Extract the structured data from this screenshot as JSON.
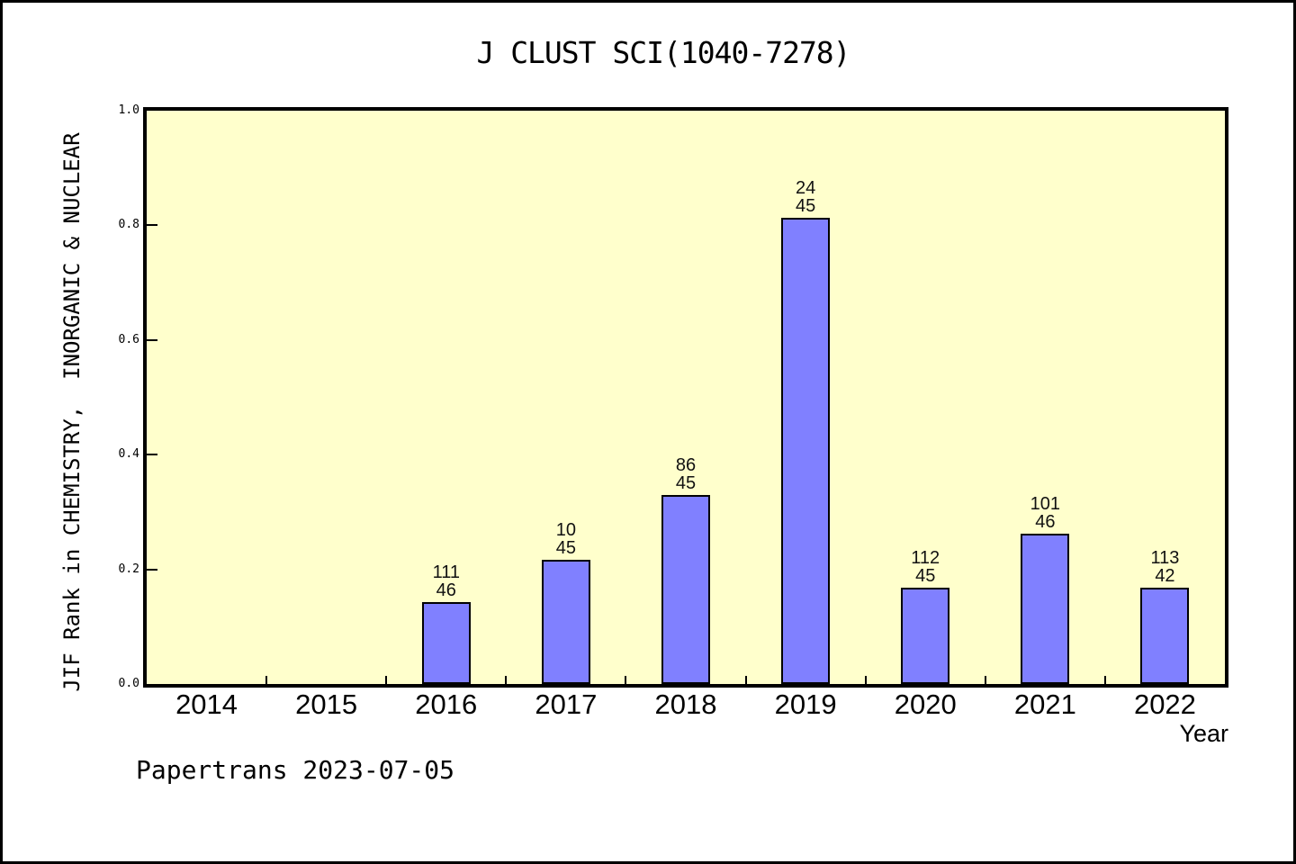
{
  "page": {
    "footer": "Papertrans 2023-07-05",
    "background": "#FFFFFF",
    "frame_color": "#000000"
  },
  "chart_data": {
    "type": "bar",
    "title": "J CLUST SCI(1040-7278)",
    "xlabel": "Year",
    "ylabel": "JIF Rank in CHEMISTRY,  INORGANIC & NUCLEAR",
    "ylim": [
      0.0,
      1.0
    ],
    "yticks": [
      0.0,
      0.2,
      0.4,
      0.6,
      0.8,
      1.0
    ],
    "grid": false,
    "legend": false,
    "colors": {
      "plot_bg": "#FFFFCC",
      "bar_fill": "#8080FF",
      "bar_border": "#000000",
      "axis": "#000000"
    },
    "categories": [
      "2014",
      "2015",
      "2016",
      "2017",
      "2018",
      "2019",
      "2020",
      "2021",
      "2022"
    ],
    "bars": [
      {
        "year": "2016",
        "value": 0.143,
        "label_lines": [
          "111",
          "46"
        ]
      },
      {
        "year": "2017",
        "value": 0.217,
        "label_lines": [
          "10",
          "45"
        ]
      },
      {
        "year": "2018",
        "value": 0.33,
        "label_lines": [
          "86",
          "45"
        ]
      },
      {
        "year": "2019",
        "value": 0.813,
        "label_lines": [
          "24",
          "45"
        ]
      },
      {
        "year": "2020",
        "value": 0.168,
        "label_lines": [
          "112",
          "45"
        ]
      },
      {
        "year": "2021",
        "value": 0.262,
        "label_lines": [
          "101",
          "46"
        ]
      },
      {
        "year": "2022",
        "value": 0.168,
        "label_lines": [
          "113",
          "42"
        ]
      }
    ]
  }
}
